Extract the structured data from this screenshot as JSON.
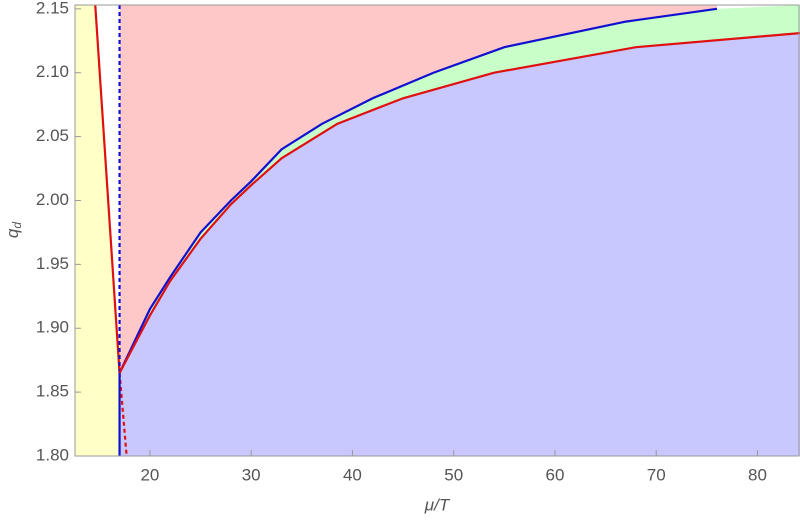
{
  "chart_data": {
    "type": "phase",
    "xlabel": "μ/T",
    "ylabel": {
      "base": "q",
      "sub": "d"
    },
    "xlim": [
      12.6,
      84.2
    ],
    "ylim": [
      1.8,
      2.153
    ],
    "xticks": [
      20,
      30,
      40,
      50,
      60,
      70,
      80
    ],
    "yticks": [
      {
        "value": 1.8,
        "label": "1.80"
      },
      {
        "value": 1.85,
        "label": "1.85"
      },
      {
        "value": 1.9,
        "label": "1.90"
      },
      {
        "value": 1.95,
        "label": "1.95"
      },
      {
        "value": 2.0,
        "label": "2.00"
      },
      {
        "value": 2.05,
        "label": "2.05"
      },
      {
        "value": 2.1,
        "label": "2.10"
      },
      {
        "value": 2.15,
        "label": "2.15"
      }
    ],
    "region_colors": {
      "yellow": "#ffffc8",
      "pink": "#ffc8c8",
      "green": "#c8ffc8",
      "blue": "#c8c8ff"
    },
    "series": [
      {
        "color": "#e01010",
        "dash": false,
        "x": [
          14.6,
          17.0
        ],
        "y": [
          2.153,
          1.865
        ]
      },
      {
        "color": "#e01010",
        "dash": true,
        "x": [
          17.0,
          17.7
        ],
        "y": [
          1.865,
          1.8
        ]
      },
      {
        "color": "#1010d0",
        "dash": true,
        "x": [
          17.0,
          17.0
        ],
        "y": [
          1.865,
          2.153
        ]
      },
      {
        "color": "#1010d0",
        "dash": false,
        "x": [
          17.0,
          17.0
        ],
        "y": [
          1.8,
          1.865
        ]
      },
      {
        "color": "#1010d0",
        "dash": false,
        "x": [
          17,
          20,
          22,
          25,
          28,
          30,
          33,
          37,
          42,
          48,
          55,
          67,
          76
        ],
        "y": [
          1.865,
          1.915,
          1.94,
          1.975,
          2.0,
          2.015,
          2.04,
          2.06,
          2.08,
          2.1,
          2.12,
          2.14,
          2.15
        ]
      },
      {
        "color": "#e01010",
        "dash": false,
        "x": [
          17,
          20,
          22,
          25,
          28,
          30,
          33,
          38.5,
          45,
          54,
          68,
          84.2
        ],
        "y": [
          1.865,
          1.91,
          1.937,
          1.97,
          1.997,
          2.012,
          2.033,
          2.06,
          2.08,
          2.1,
          2.12,
          2.131
        ]
      }
    ]
  }
}
